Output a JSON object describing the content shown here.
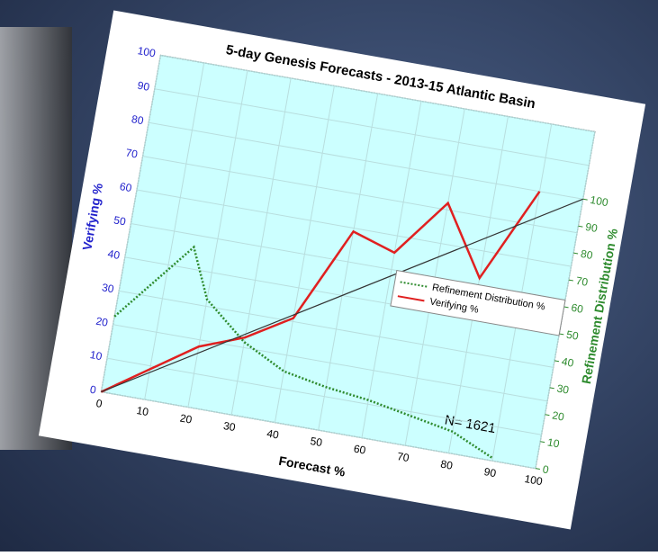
{
  "chart_data": {
    "type": "line",
    "title": "5-day Genesis Forecasts  - 2013-15 Atlantic Basin",
    "x_label": "Forecast %",
    "y_label": "Verifying %",
    "y2_label": "Refinement Distribution %",
    "annotation": "N= 1621",
    "xlim": [
      0,
      100
    ],
    "xticks": [
      0,
      10,
      20,
      30,
      40,
      50,
      60,
      70,
      80,
      90,
      100
    ],
    "ylim": [
      0,
      100
    ],
    "yticks": [
      0,
      10,
      20,
      30,
      40,
      50,
      60,
      70,
      80,
      90,
      100
    ],
    "y2lim": [
      0,
      125
    ],
    "y2ticks": [
      0,
      10,
      20,
      30,
      40,
      50,
      60,
      70,
      80,
      90,
      100
    ],
    "grid": true,
    "legend": "center-right",
    "series": [
      {
        "name": "Refinement Distribution %",
        "color": "#2e8b2e",
        "dashed": true,
        "axis": "y2",
        "x": [
          0,
          15,
          20,
          30,
          40,
          50,
          60,
          70,
          80,
          90
        ],
        "values": [
          28,
          58,
          40,
          27,
          19,
          16,
          14,
          11,
          8,
          1
        ]
      },
      {
        "name": "Verifying %",
        "color": "#e02020",
        "x": [
          0,
          10,
          20,
          30,
          40,
          50,
          60,
          70,
          80,
          90
        ],
        "values": [
          0,
          9,
          18,
          23,
          31,
          59,
          55,
          72,
          52,
          80
        ]
      },
      {
        "color": "#333333",
        "axis": "y2",
        "x": [
          0,
          100
        ],
        "values": [
          0,
          100
        ]
      }
    ]
  }
}
